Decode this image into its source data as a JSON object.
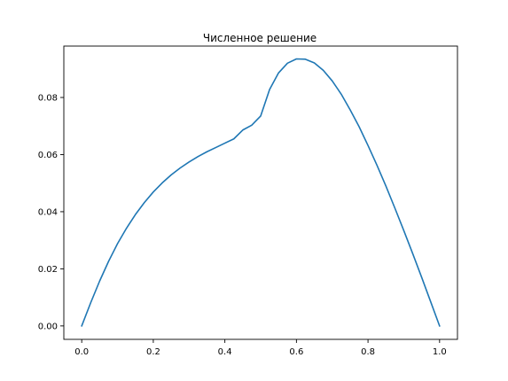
{
  "chart_data": {
    "type": "line",
    "title": "Численное решение",
    "xlabel": "",
    "ylabel": "",
    "xlim": [
      -0.05,
      1.05
    ],
    "ylim": [
      -0.0047,
      0.098
    ],
    "grid": false,
    "xticks": [
      {
        "value": 0.0,
        "label": "0.0"
      },
      {
        "value": 0.2,
        "label": "0.2"
      },
      {
        "value": 0.4,
        "label": "0.4"
      },
      {
        "value": 0.6,
        "label": "0.6"
      },
      {
        "value": 0.8,
        "label": "0.8"
      },
      {
        "value": 1.0,
        "label": "1.0"
      }
    ],
    "yticks": [
      {
        "value": 0.0,
        "label": "0.00"
      },
      {
        "value": 0.02,
        "label": "0.02"
      },
      {
        "value": 0.04,
        "label": "0.04"
      },
      {
        "value": 0.06,
        "label": "0.06"
      },
      {
        "value": 0.08,
        "label": "0.08"
      }
    ],
    "series": [
      {
        "color": "#1f77b4",
        "x": [
          0.0,
          0.025,
          0.05,
          0.075,
          0.1,
          0.125,
          0.15,
          0.175,
          0.2,
          0.225,
          0.25,
          0.275,
          0.3,
          0.325,
          0.35,
          0.375,
          0.4,
          0.425,
          0.45,
          0.475,
          0.5,
          0.525,
          0.55,
          0.575,
          0.6,
          0.625,
          0.65,
          0.675,
          0.7,
          0.725,
          0.75,
          0.775,
          0.8,
          0.825,
          0.85,
          0.875,
          0.9,
          0.925,
          0.95,
          0.975,
          1.0
        ],
        "y": [
          0.0,
          0.0081,
          0.0157,
          0.0226,
          0.0288,
          0.0342,
          0.039,
          0.0432,
          0.0469,
          0.0501,
          0.0529,
          0.0553,
          0.0574,
          0.0593,
          0.061,
          0.0625,
          0.064,
          0.0655,
          0.0686,
          0.0703,
          0.0735,
          0.0828,
          0.0886,
          0.092,
          0.0935,
          0.0934,
          0.0921,
          0.0895,
          0.0858,
          0.0812,
          0.0757,
          0.0698,
          0.0632,
          0.0563,
          0.049,
          0.0413,
          0.0334,
          0.0253,
          0.017,
          0.0085,
          0.0
        ]
      }
    ]
  }
}
